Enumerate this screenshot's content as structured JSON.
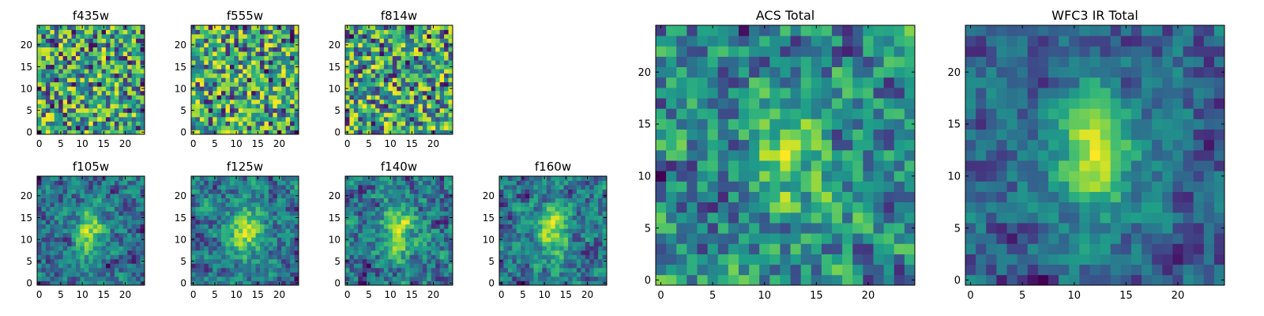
{
  "chart_data": [
    {
      "type": "heatmap",
      "title": "f435w",
      "x_ticks": [
        0,
        5,
        10,
        15,
        20
      ],
      "y_ticks": [
        0,
        5,
        10,
        15,
        20
      ],
      "xlim": [
        0,
        25
      ],
      "ylim": [
        0,
        25
      ],
      "grid_size": 25,
      "seed": 11,
      "profile": "flat",
      "colormap": "viridis"
    },
    {
      "type": "heatmap",
      "title": "f555w",
      "x_ticks": [
        0,
        5,
        10,
        15,
        20
      ],
      "y_ticks": [
        0,
        5,
        10,
        15,
        20
      ],
      "xlim": [
        0,
        25
      ],
      "ylim": [
        0,
        25
      ],
      "grid_size": 25,
      "seed": 23,
      "profile": "flat",
      "colormap": "viridis"
    },
    {
      "type": "heatmap",
      "title": "f814w",
      "x_ticks": [
        0,
        5,
        10,
        15,
        20
      ],
      "y_ticks": [
        0,
        5,
        10,
        15,
        20
      ],
      "xlim": [
        0,
        25
      ],
      "ylim": [
        0,
        25
      ],
      "grid_size": 25,
      "seed": 37,
      "profile": "flat",
      "colormap": "viridis"
    },
    {
      "type": "heatmap",
      "title": "f105w",
      "x_ticks": [
        0,
        5,
        10,
        15,
        20
      ],
      "y_ticks": [
        0,
        5,
        10,
        15,
        20
      ],
      "xlim": [
        0,
        25
      ],
      "ylim": [
        0,
        25
      ],
      "grid_size": 25,
      "seed": 41,
      "profile": "source",
      "colormap": "viridis"
    },
    {
      "type": "heatmap",
      "title": "f125w",
      "x_ticks": [
        0,
        5,
        10,
        15,
        20
      ],
      "y_ticks": [
        0,
        5,
        10,
        15,
        20
      ],
      "xlim": [
        0,
        25
      ],
      "ylim": [
        0,
        25
      ],
      "grid_size": 25,
      "seed": 53,
      "profile": "source",
      "colormap": "viridis"
    },
    {
      "type": "heatmap",
      "title": "f140w",
      "x_ticks": [
        0,
        5,
        10,
        15,
        20
      ],
      "y_ticks": [
        0,
        5,
        10,
        15,
        20
      ],
      "xlim": [
        0,
        25
      ],
      "ylim": [
        0,
        25
      ],
      "grid_size": 25,
      "seed": 67,
      "profile": "source",
      "colormap": "viridis"
    },
    {
      "type": "heatmap",
      "title": "f160w",
      "x_ticks": [
        0,
        5,
        10,
        15,
        20
      ],
      "y_ticks": [
        0,
        5,
        10,
        15,
        20
      ],
      "xlim": [
        0,
        25
      ],
      "ylim": [
        0,
        25
      ],
      "grid_size": 25,
      "seed": 71,
      "profile": "source",
      "colormap": "viridis"
    },
    {
      "type": "heatmap",
      "title": "ACS Total",
      "x_ticks": [
        0,
        5,
        10,
        15,
        20
      ],
      "y_ticks": [
        0,
        5,
        10,
        15,
        20
      ],
      "xlim": [
        0,
        25
      ],
      "ylim": [
        0,
        25
      ],
      "grid_size": 25,
      "seed": 83,
      "profile": "source-weak",
      "colormap": "viridis"
    },
    {
      "type": "heatmap",
      "title": "WFC3 IR Total",
      "x_ticks": [
        0,
        5,
        10,
        15,
        20
      ],
      "y_ticks": [
        0,
        5,
        10,
        15,
        20
      ],
      "xlim": [
        0,
        25
      ],
      "ylim": [
        0,
        25
      ],
      "grid_size": 25,
      "seed": 97,
      "profile": "source-strong",
      "colormap": "viridis"
    }
  ]
}
